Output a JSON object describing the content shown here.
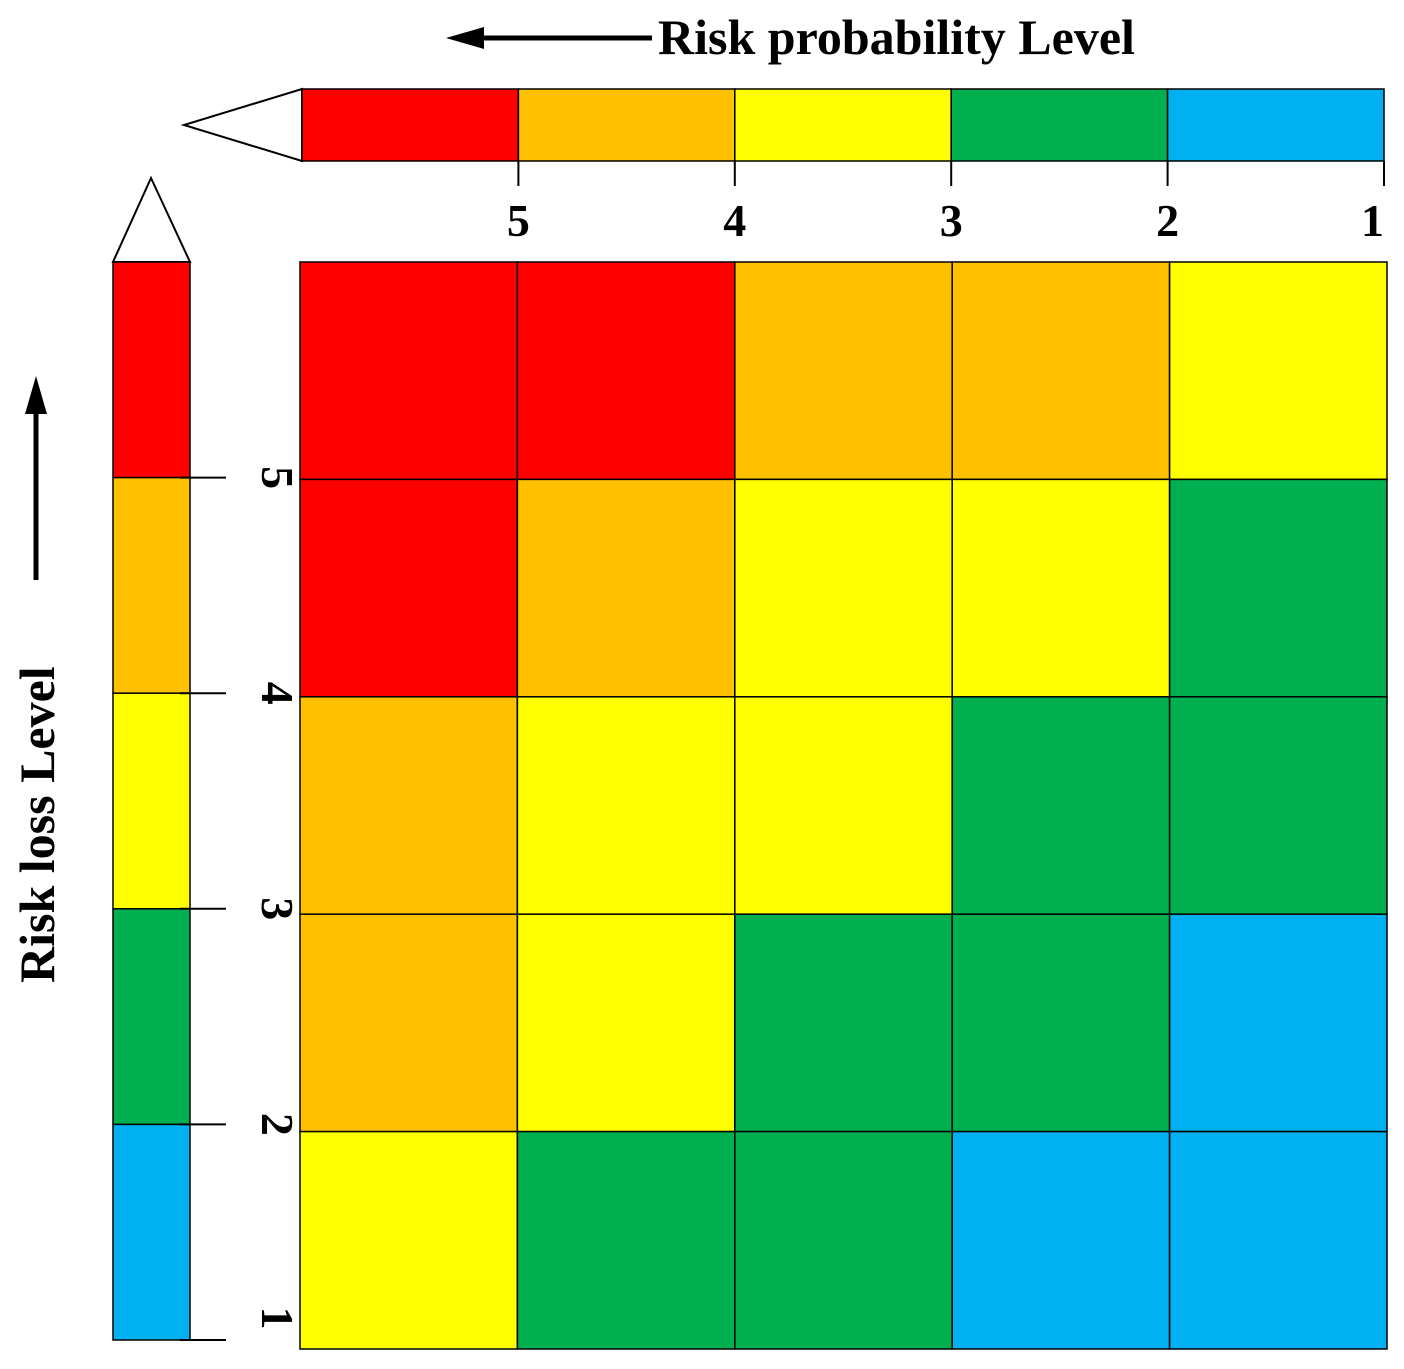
{
  "chart_data": {
    "type": "heatmap",
    "x_title": "Risk probability Level",
    "y_title": "Risk loss Level",
    "x_ticks": [
      "5",
      "4",
      "3",
      "2",
      "1"
    ],
    "y_ticks": [
      "5",
      "4",
      "3",
      "2",
      "1"
    ],
    "x_scale": [
      {
        "from": 6,
        "to": 5,
        "level": "red"
      },
      {
        "from": 5,
        "to": 4,
        "level": "orange"
      },
      {
        "from": 4,
        "to": 3,
        "level": "yellow"
      },
      {
        "from": 3,
        "to": 2,
        "level": "green"
      },
      {
        "from": 2,
        "to": 1,
        "level": "blue"
      }
    ],
    "y_scale": [
      {
        "from": 6,
        "to": 5,
        "level": "red"
      },
      {
        "from": 5,
        "to": 4,
        "level": "orange"
      },
      {
        "from": 4,
        "to": 3,
        "level": "yellow"
      },
      {
        "from": 3,
        "to": 2,
        "level": "green"
      },
      {
        "from": 2,
        "to": 1,
        "level": "blue"
      }
    ],
    "matrix_rows_top_to_bottom": [
      [
        "red",
        "red",
        "orange",
        "orange",
        "yellow"
      ],
      [
        "red",
        "orange",
        "yellow",
        "yellow",
        "green"
      ],
      [
        "orange",
        "yellow",
        "yellow",
        "green",
        "green"
      ],
      [
        "orange",
        "yellow",
        "green",
        "green",
        "blue"
      ],
      [
        "yellow",
        "green",
        "green",
        "blue",
        "blue"
      ]
    ],
    "colors": {
      "red": "#ff0000",
      "orange": "#ffc000",
      "yellow": "#ffff00",
      "green": "#00b050",
      "blue": "#00b0f0"
    }
  }
}
